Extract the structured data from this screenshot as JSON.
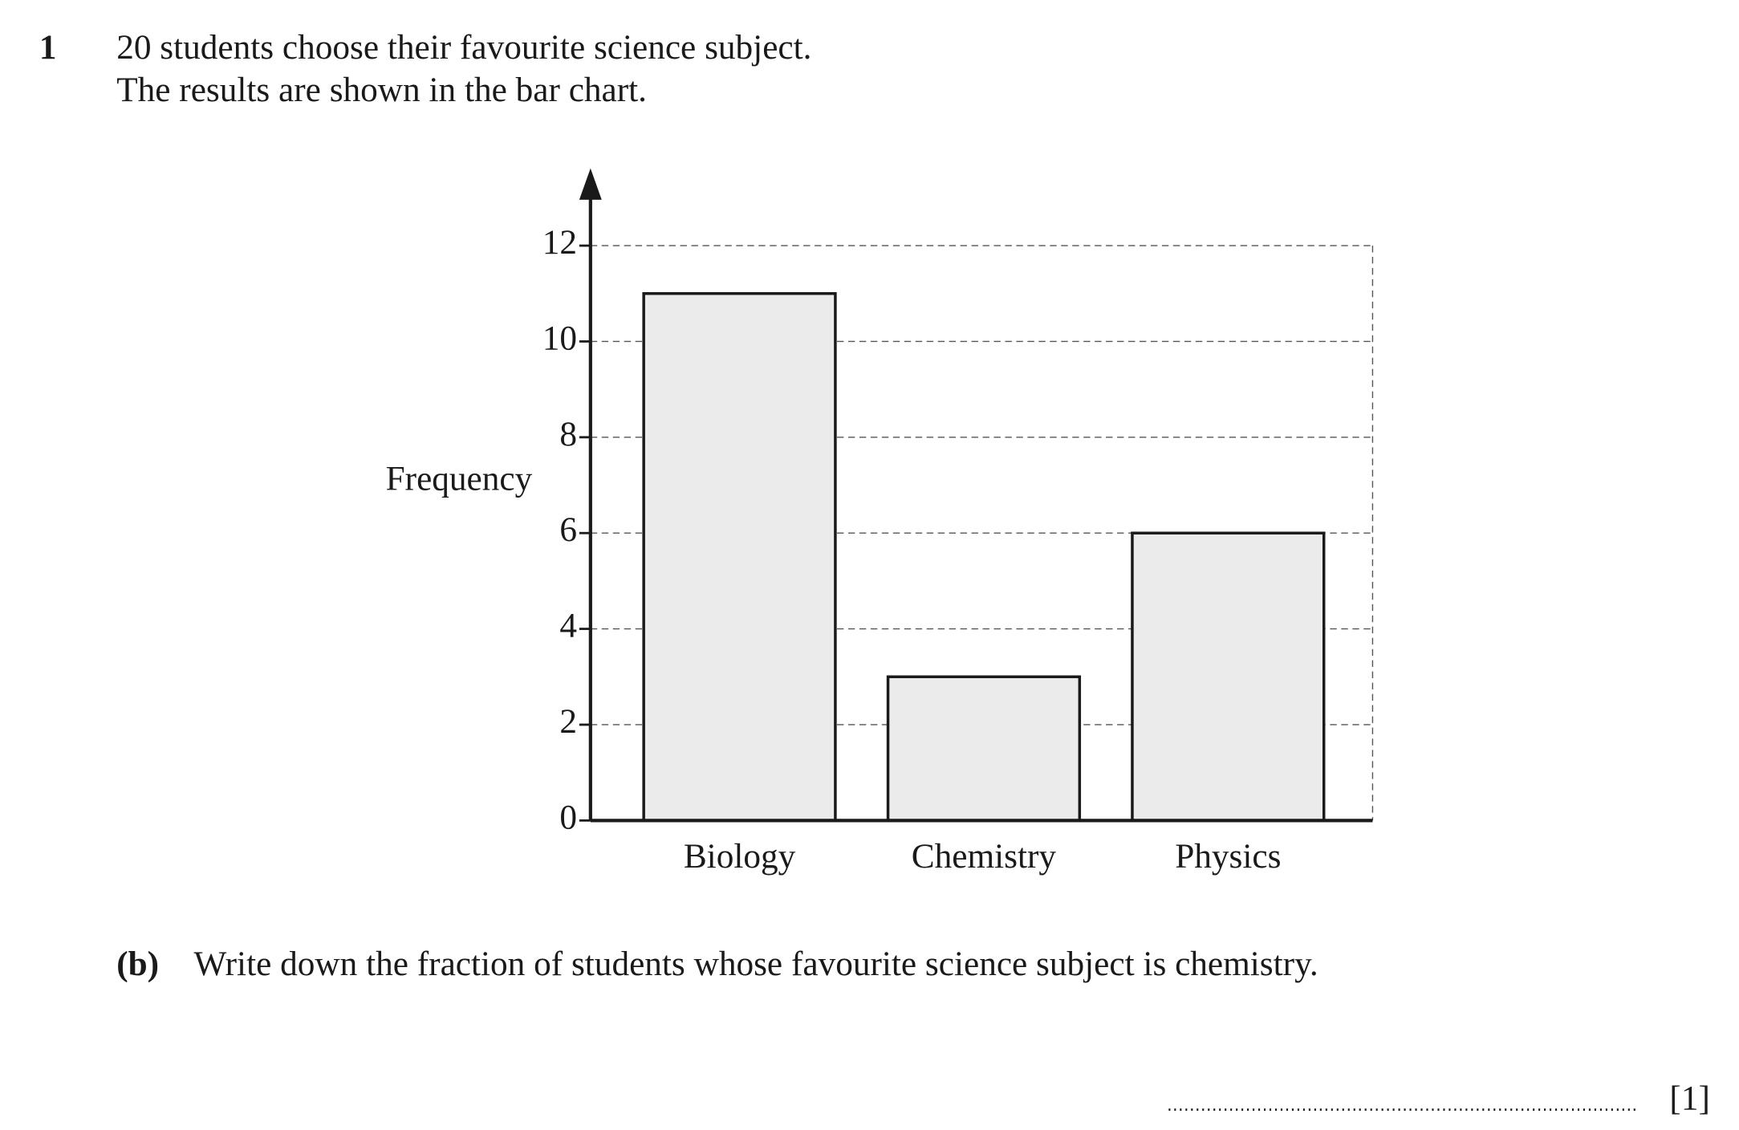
{
  "question": {
    "number": "1",
    "lines": [
      "20 students choose their favourite science subject.",
      "The results are shown in the bar chart."
    ]
  },
  "chart_data": {
    "type": "bar",
    "ylabel": "Frequency",
    "categories": [
      "Biology",
      "Chemistry",
      "Physics"
    ],
    "values": [
      11,
      3,
      6
    ],
    "color": "#ebebeb",
    "ylim": [
      0,
      12
    ],
    "yticks": [
      0,
      2,
      4,
      6,
      8,
      10,
      12
    ],
    "grid": true
  },
  "part_b": {
    "label": "(b)",
    "text": "Write down the fraction of students whose favourite science subject is chemistry.",
    "marks": "[1]"
  }
}
